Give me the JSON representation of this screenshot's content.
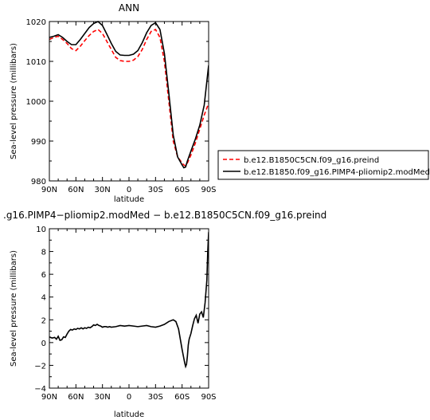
{
  "chart_data": [
    {
      "type": "line",
      "title": "ANN",
      "xlabel": "latitude",
      "ylabel": "Sea-level pressure (millibars)",
      "xlim": [
        90,
        -90
      ],
      "ylim": [
        980,
        1020
      ],
      "xticks": [
        90,
        60,
        30,
        0,
        -30,
        -60,
        -90
      ],
      "xtick_labels": [
        "90N",
        "60N",
        "30N",
        "0",
        "30S",
        "60S",
        "90S"
      ],
      "yticks": [
        980,
        990,
        1000,
        1010,
        1020
      ],
      "ytick_labels": [
        "980",
        "990",
        "1000",
        "1010",
        "1020"
      ],
      "legend_position": "right",
      "series": [
        {
          "name": "b.e12.B1850C5CN.f09_g16.preind",
          "color": "#ff0000",
          "dash": true,
          "x": [
            90,
            85,
            80,
            75,
            70,
            65,
            60,
            55,
            50,
            45,
            40,
            35,
            30,
            25,
            20,
            15,
            10,
            5,
            0,
            -5,
            -10,
            -15,
            -20,
            -25,
            -30,
            -35,
            -40,
            -45,
            -50,
            -55,
            -60,
            -62,
            -64,
            -66,
            -70,
            -75,
            -80,
            -85,
            -90
          ],
          "y": [
            1015.5,
            1016,
            1016.3,
            1015.5,
            1014.5,
            1013.2,
            1012.7,
            1013.8,
            1015.2,
            1016.5,
            1017.5,
            1018,
            1017,
            1015,
            1013,
            1011,
            1010.2,
            1010,
            1010,
            1010.3,
            1011.2,
            1013,
            1015.5,
            1017.5,
            1018,
            1016,
            1010,
            1000,
            990,
            986,
            984.5,
            984,
            983.8,
            984.5,
            986.5,
            989.5,
            993,
            996.5,
            999.5
          ]
        },
        {
          "name": "b.e12.B1850.f09_g16.PIMP4-pliomip2.modMed",
          "color": "#000000",
          "dash": false,
          "x": [
            90,
            85,
            80,
            75,
            70,
            65,
            60,
            55,
            50,
            45,
            40,
            35,
            30,
            25,
            20,
            15,
            10,
            5,
            0,
            -5,
            -10,
            -15,
            -20,
            -25,
            -30,
            -35,
            -40,
            -45,
            -50,
            -55,
            -60,
            -62,
            -64,
            -66,
            -70,
            -75,
            -80,
            -85,
            -90
          ],
          "y": [
            1016,
            1016.3,
            1016.7,
            1016,
            1015,
            1014.2,
            1014.2,
            1015.5,
            1017,
            1018.5,
            1019.5,
            1020,
            1019,
            1016.8,
            1014.5,
            1012.5,
            1011.6,
            1011.5,
            1011.5,
            1011.8,
            1012.7,
            1014.7,
            1017.2,
            1019,
            1019.7,
            1018,
            1012,
            1002,
            991.5,
            986,
            984,
            983.3,
            983.5,
            985,
            987.5,
            990.5,
            994,
            999,
            1009
          ]
        }
      ]
    },
    {
      "type": "line",
      "title": ".g16.PIMP4−pliomip2.modMed − b.e12.B1850C5CN.f09_g16.preind",
      "xlabel": "latitude",
      "ylabel": "Sea-level pressure (millibars)",
      "xlim": [
        90,
        -90
      ],
      "ylim": [
        -4,
        10
      ],
      "xticks": [
        90,
        60,
        30,
        0,
        -30,
        -60,
        -90
      ],
      "xtick_labels": [
        "90N",
        "60N",
        "30N",
        "0",
        "30S",
        "60S",
        "90S"
      ],
      "yticks": [
        -4,
        -2,
        0,
        2,
        4,
        6,
        8,
        10
      ],
      "ytick_labels": [
        "−4",
        "−2",
        "0",
        "2",
        "4",
        "6",
        "8",
        "10"
      ],
      "series": [
        {
          "name": "",
          "color": "#000000",
          "dash": false,
          "x": [
            90,
            87,
            84,
            82,
            80,
            78,
            76,
            74,
            72,
            70,
            68,
            66,
            64,
            62,
            60,
            58,
            56,
            54,
            52,
            50,
            48,
            46,
            44,
            42,
            40,
            38,
            36,
            34,
            32,
            30,
            28,
            26,
            24,
            22,
            20,
            15,
            10,
            5,
            0,
            -5,
            -10,
            -15,
            -20,
            -25,
            -30,
            -35,
            -40,
            -45,
            -50,
            -53,
            -56,
            -58,
            -60,
            -62,
            -63,
            -64,
            -65,
            -66,
            -67,
            -68,
            -70,
            -72,
            -74,
            -76,
            -78,
            -80,
            -82,
            -84,
            -86,
            -88,
            -89,
            -90
          ],
          "y": [
            0.5,
            0.4,
            0.45,
            0.3,
            0.55,
            0.2,
            0.25,
            0.5,
            0.45,
            0.75,
            1.0,
            1.15,
            1.1,
            1.2,
            1.15,
            1.25,
            1.2,
            1.3,
            1.2,
            1.3,
            1.25,
            1.35,
            1.3,
            1.4,
            1.55,
            1.5,
            1.6,
            1.5,
            1.45,
            1.35,
            1.4,
            1.4,
            1.35,
            1.4,
            1.35,
            1.4,
            1.5,
            1.45,
            1.5,
            1.45,
            1.4,
            1.45,
            1.5,
            1.4,
            1.35,
            1.45,
            1.6,
            1.85,
            2.0,
            1.85,
            1.2,
            0.3,
            -0.6,
            -1.4,
            -1.8,
            -2.1,
            -1.9,
            -1.2,
            -0.2,
            0.3,
            0.8,
            1.5,
            2.1,
            2.4,
            1.7,
            2.5,
            2.7,
            2.2,
            3.5,
            5.5,
            8.0,
            9.7
          ]
        }
      ]
    }
  ]
}
